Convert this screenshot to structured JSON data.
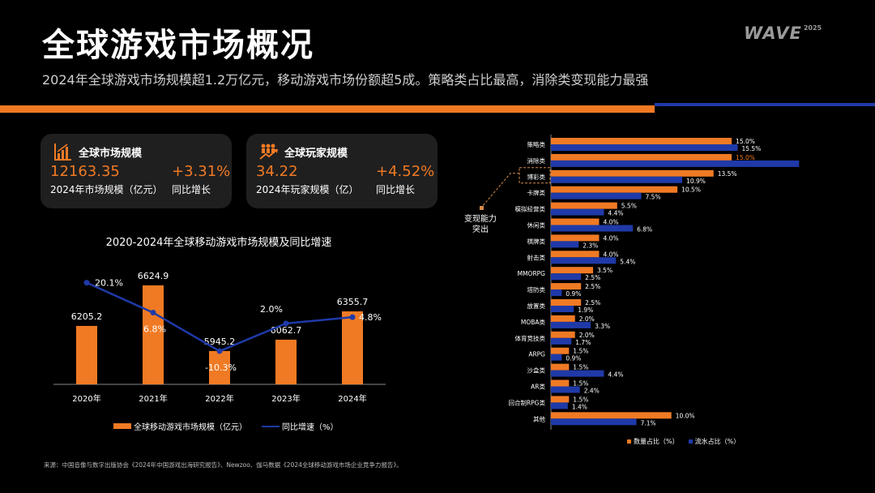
{
  "header": {
    "title": "全球游戏市场概况",
    "subtitle": "2024年全球游戏市场规模超1.2万亿元，移动游戏市场份额超5成。策略类占比最高，消除类变现能力最强",
    "logo_text": "WAVE",
    "logo_year": "2025"
  },
  "colors": {
    "accent_orange": "#f07a24",
    "accent_blue": "#1f3aa8",
    "card_bg": "#1f1f1f"
  },
  "cards": [
    {
      "icon": "bar-chart-growth-icon",
      "title": "全球市场规模",
      "value": "12163.35",
      "value_label": "2024年市场规模（亿元）",
      "growth": "+3.31%",
      "growth_label": "同比增长"
    },
    {
      "icon": "people-growth-icon",
      "title": "全球玩家规模",
      "value": "34.22",
      "value_label": "2024年玩家规模（亿）",
      "growth": "+4.52%",
      "growth_label": "同比增长"
    }
  ],
  "chart_data": [
    {
      "type": "bar",
      "title": "2020-2024年全球移动游戏市场规模及同比增速",
      "categories": [
        "2020年",
        "2021年",
        "2022年",
        "2023年",
        "2024年"
      ],
      "series": [
        {
          "name": "全球移动游戏市场规模（亿元）",
          "type": "bar",
          "values": [
            6205.2,
            6624.9,
            5945.2,
            6062.7,
            6355.7
          ],
          "labels": [
            "6205.2",
            "6624.9",
            "5945.2",
            "6062.7",
            "6355.7"
          ],
          "color": "#f07a24"
        },
        {
          "name": "同比增速（%）",
          "type": "line",
          "values": [
            20.1,
            6.8,
            -10.3,
            2.0,
            4.8
          ],
          "labels": [
            "20.1%",
            "6.8%",
            "-10.3%",
            "2.0%",
            "4.8%"
          ],
          "color": "#1f3aa8"
        }
      ],
      "ylim": [
        5600,
        6700
      ],
      "y2lim": [
        -20,
        25
      ],
      "legend": "bottom",
      "grid": false
    },
    {
      "type": "bar",
      "orientation": "horizontal",
      "title": "",
      "categories": [
        "策略类",
        "消除类",
        "博彩类",
        "卡牌类",
        "模拟经营类",
        "休闲类",
        "棋牌类",
        "射击类",
        "MMORPG",
        "塔防类",
        "放置类",
        "MOBA类",
        "体育竞技类",
        "ARPG",
        "沙盒类",
        "AR类",
        "回合制RPG类",
        "其他"
      ],
      "series": [
        {
          "name": "数量占比（%）",
          "values": [
            15.0,
            15.0,
            13.5,
            10.5,
            5.5,
            4.0,
            4.0,
            4.0,
            3.5,
            2.5,
            2.5,
            2.0,
            2.0,
            1.5,
            1.5,
            1.5,
            1.5,
            10.0
          ],
          "labels": [
            "15.0%",
            "15.0%",
            "13.5%",
            "10.5%",
            "5.5%",
            "4.0%",
            "4.0%",
            "4.0%",
            "3.5%",
            "2.5%",
            "2.5%",
            "2.0%",
            "2.0%",
            "1.5%",
            "1.5%",
            "1.5%",
            "1.5%",
            "10.0%"
          ],
          "color": "#f07a24"
        },
        {
          "name": "流水占比（%）",
          "values": [
            15.5,
            20.6,
            10.9,
            7.5,
            4.4,
            6.8,
            2.3,
            5.4,
            2.5,
            0.9,
            1.9,
            3.3,
            1.7,
            0.9,
            4.4,
            2.4,
            1.4,
            7.1
          ],
          "labels": [
            "15.5%",
            "",
            "10.9%",
            "7.5%",
            "4.4%",
            "6.8%",
            "2.3%",
            "5.4%",
            "2.5%",
            "0.9%",
            "1.9%",
            "3.3%",
            "1.7%",
            "0.9%",
            "4.4%",
            "2.4%",
            "1.4%",
            "7.1%"
          ],
          "color": "#1f3aa8"
        }
      ],
      "xlim": [
        0,
        21
      ],
      "annotation": {
        "text_line1": "变现能力",
        "text_line2": "突出",
        "target": "博彩类"
      },
      "legend": "bottom-right",
      "grid": false
    }
  ],
  "footer": {
    "source": "来源：中国音像与数字出版协会《2024年中国游戏出海研究报告》、Newzoo、伽马数据《2024全球移动游戏市场企业竞争力报告》。"
  }
}
